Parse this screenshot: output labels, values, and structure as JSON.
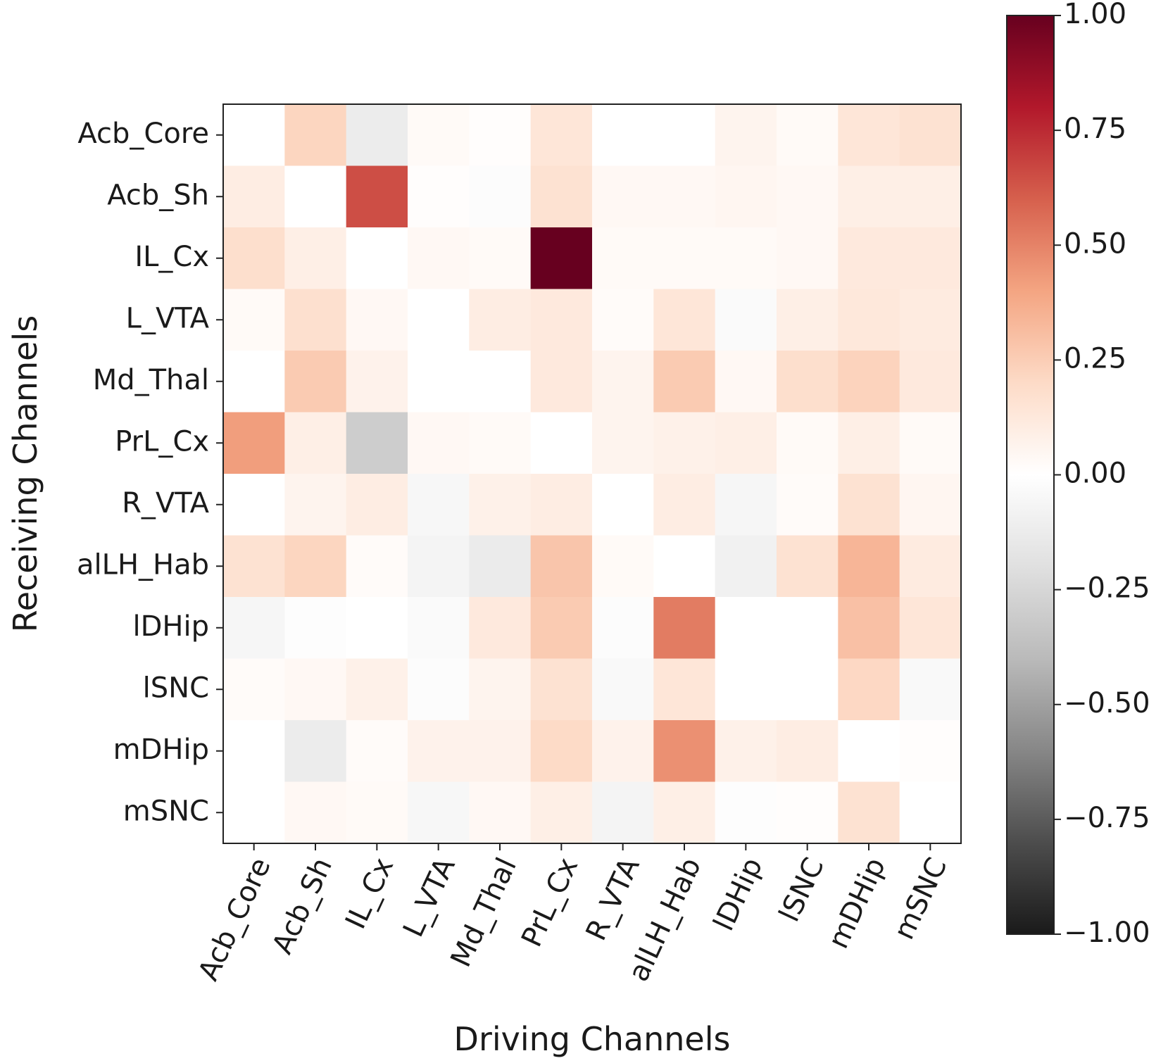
{
  "chart_data": {
    "type": "heatmap",
    "title": "",
    "xlabel": "Driving Channels",
    "ylabel": "Receiving Channels",
    "x_categories": [
      "Acb_Core",
      "Acb_Sh",
      "IL_Cx",
      "L_VTA",
      "Md_Thal",
      "PrL_Cx",
      "R_VTA",
      "alLH_Hab",
      "lDHip",
      "lSNC",
      "mDHip",
      "mSNC"
    ],
    "y_categories": [
      "Acb_Core",
      "Acb_Sh",
      "IL_Cx",
      "L_VTA",
      "Md_Thal",
      "PrL_Cx",
      "R_VTA",
      "alLH_Hab",
      "lDHip",
      "lSNC",
      "mDHip",
      "mSNC"
    ],
    "values": [
      [
        0.0,
        0.22,
        -0.12,
        0.03,
        0.01,
        0.14,
        0.0,
        0.0,
        0.06,
        0.03,
        0.14,
        0.16
      ],
      [
        0.1,
        0.0,
        0.65,
        0.01,
        -0.02,
        0.16,
        0.04,
        0.04,
        0.05,
        0.04,
        0.09,
        0.09
      ],
      [
        0.18,
        0.09,
        0.0,
        0.04,
        0.03,
        1.0,
        0.03,
        0.03,
        0.03,
        0.04,
        0.12,
        0.12
      ],
      [
        0.03,
        0.17,
        0.04,
        0.0,
        0.1,
        0.12,
        0.02,
        0.14,
        -0.03,
        0.09,
        0.13,
        0.11
      ],
      [
        0.0,
        0.26,
        0.07,
        0.0,
        0.0,
        0.12,
        0.06,
        0.26,
        0.04,
        0.18,
        0.23,
        0.12
      ],
      [
        0.42,
        0.09,
        -0.3,
        0.04,
        0.03,
        0.0,
        0.06,
        0.08,
        0.09,
        0.03,
        0.09,
        0.03
      ],
      [
        0.0,
        0.06,
        0.1,
        -0.05,
        0.08,
        0.1,
        0.0,
        0.1,
        -0.06,
        0.02,
        0.16,
        0.05
      ],
      [
        0.16,
        0.22,
        0.02,
        -0.07,
        -0.13,
        0.28,
        0.03,
        0.0,
        -0.09,
        0.16,
        0.34,
        0.11
      ],
      [
        -0.06,
        -0.01,
        0.0,
        -0.03,
        0.12,
        0.26,
        -0.02,
        0.52,
        0.0,
        0.0,
        0.3,
        0.14
      ],
      [
        0.02,
        0.04,
        0.08,
        -0.02,
        0.06,
        0.16,
        -0.04,
        0.14,
        0.0,
        0.0,
        0.21,
        -0.04
      ],
      [
        0.0,
        -0.12,
        0.02,
        0.07,
        0.07,
        0.2,
        0.07,
        0.46,
        0.08,
        0.1,
        0.0,
        0.01
      ],
      [
        0.0,
        0.04,
        0.03,
        -0.05,
        0.04,
        0.09,
        -0.07,
        0.09,
        -0.01,
        0.01,
        0.16,
        0.0
      ]
    ],
    "colorbar": {
      "range": [
        -1.0,
        1.0
      ],
      "ticks": [
        "1.00",
        "0.75",
        "0.50",
        "0.25",
        "0.00",
        "−0.25",
        "−0.50",
        "−0.75",
        "−1.00"
      ],
      "tick_values": [
        1.0,
        0.75,
        0.5,
        0.25,
        0.0,
        -0.25,
        -0.5,
        -0.75,
        -1.0
      ],
      "stops_negative": [
        "#1a1a1a",
        "#4d4d4d",
        "#878787",
        "#bababa",
        "#e0e0e0",
        "#ffffff"
      ],
      "stops_positive": [
        "#ffffff",
        "#fddbc7",
        "#f4a582",
        "#d6604d",
        "#b2182b",
        "#67001f"
      ]
    }
  }
}
